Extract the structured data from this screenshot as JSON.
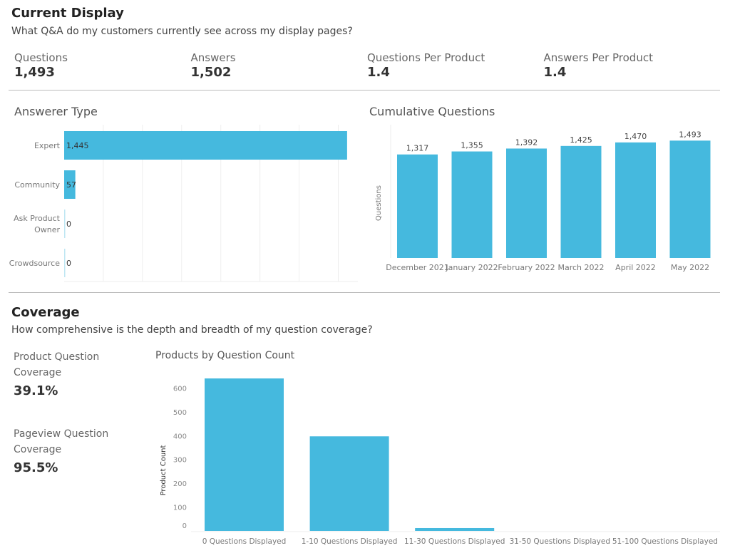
{
  "current": {
    "title": "Current Display",
    "subtitle": "What Q&A do my customers currently see across my display pages?",
    "kpis": [
      {
        "label": "Questions",
        "value": "1,493"
      },
      {
        "label": "Answers",
        "value": "1,502"
      },
      {
        "label": "Questions Per Product",
        "value": "1.4"
      },
      {
        "label": "Answers Per Product",
        "value": "1.4"
      }
    ]
  },
  "coverage": {
    "title": "Coverage",
    "subtitle": "How comprehensive is the depth and breadth of my question coverage?",
    "kpis": [
      {
        "label": "Product Question Coverage",
        "value": "39.1%"
      },
      {
        "label": "Pageview Question Coverage",
        "value": "95.5%"
      }
    ]
  },
  "colors": {
    "bar": "#45b9de"
  },
  "chart_data": [
    {
      "type": "bar",
      "orientation": "horizontal",
      "title": "Answerer Type",
      "categories": [
        "Expert",
        "Community",
        "Ask Product Owner",
        "Crowdsource"
      ],
      "values": [
        1445,
        57,
        0,
        0
      ],
      "labels": [
        "1,445",
        "57",
        "0",
        "0"
      ],
      "xlim": [
        0,
        1500
      ],
      "grid": true
    },
    {
      "type": "bar",
      "title": "Cumulative Questions",
      "ylabel": "Questions",
      "categories": [
        "December 2021",
        "January 2022",
        "February 2022",
        "March 2022",
        "April 2022",
        "May 2022"
      ],
      "values": [
        1317,
        1355,
        1392,
        1425,
        1470,
        1493
      ],
      "labels": [
        "1,317",
        "1,355",
        "1,392",
        "1,425",
        "1,470",
        "1,493"
      ],
      "ylim": [
        0,
        1650
      ]
    },
    {
      "type": "bar",
      "title": "Products by Question Count",
      "ylabel": "Product Count",
      "categories": [
        "0 Questions Displayed",
        "1-10 Questions Displayed",
        "11-30 Questions Displayed",
        "31-50 Questions Displayed",
        "51-100 Questions Displayed"
      ],
      "values": [
        640,
        397,
        12,
        0,
        0
      ],
      "yticks": [
        0,
        100,
        200,
        300,
        400,
        500,
        600
      ],
      "ylim": [
        0,
        650
      ]
    }
  ]
}
